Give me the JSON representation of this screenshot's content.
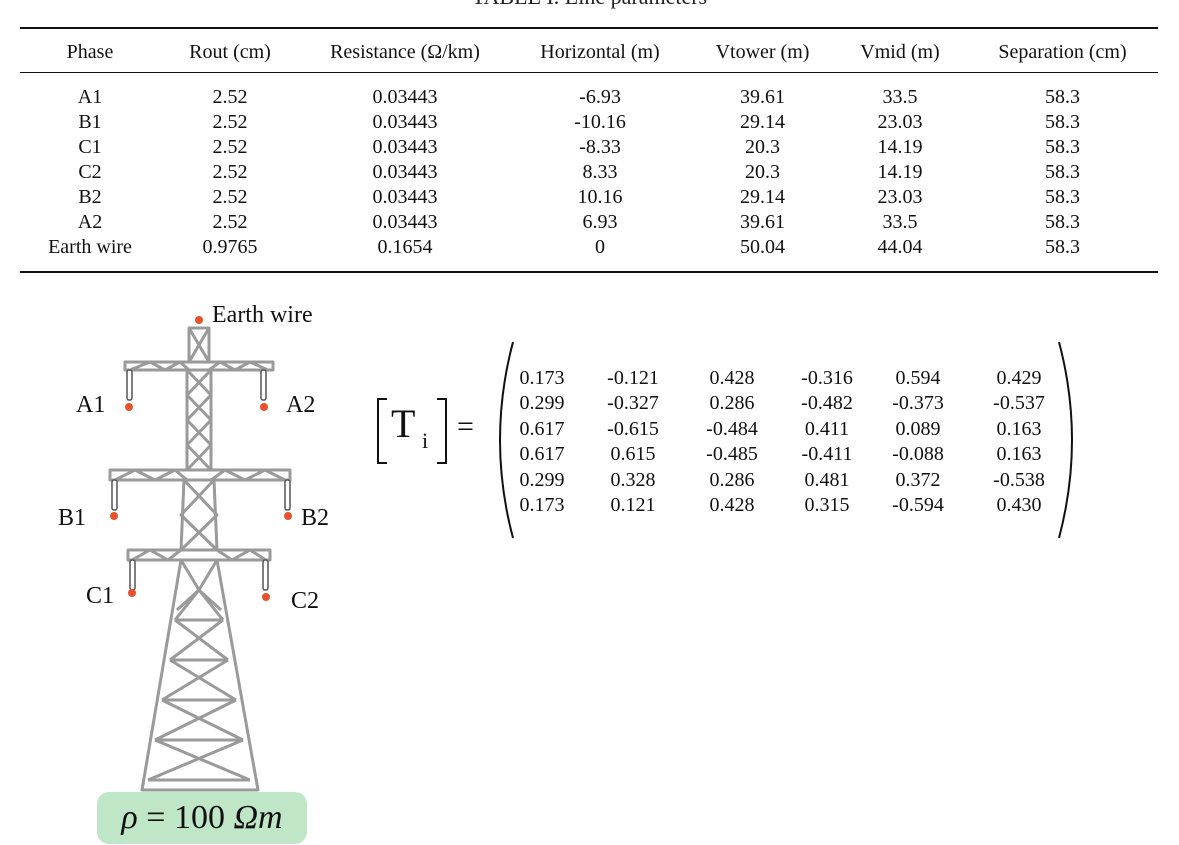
{
  "caption": "TABLE I. Line parameters",
  "table": {
    "headers": [
      "Phase",
      "Rout (cm)",
      "Resistance (Ω/km)",
      "Horizontal (m)",
      "Vtower (m)",
      "Vmid (m)",
      "Separation (cm)"
    ],
    "rows": [
      [
        "A1",
        "2.52",
        "0.03443",
        "-6.93",
        "39.61",
        "33.5",
        "58.3"
      ],
      [
        "B1",
        "2.52",
        "0.03443",
        "-10.16",
        "29.14",
        "23.03",
        "58.3"
      ],
      [
        "C1",
        "2.52",
        "0.03443",
        "-8.33",
        "20.3",
        "14.19",
        "58.3"
      ],
      [
        "C2",
        "2.52",
        "0.03443",
        "8.33",
        "20.3",
        "14.19",
        "58.3"
      ],
      [
        "B2",
        "2.52",
        "0.03443",
        "10.16",
        "29.14",
        "23.03",
        "58.3"
      ],
      [
        "A2",
        "2.52",
        "0.03443",
        "6.93",
        "39.61",
        "33.5",
        "58.3"
      ],
      [
        "Earth wire",
        "0.9765",
        "0.1654",
        "0",
        "50.04",
        "44.04",
        "58.3"
      ]
    ]
  },
  "figure": {
    "labels": {
      "earth": "Earth wire",
      "a1": "A1",
      "a2": "A2",
      "b1": "B1",
      "b2": "B2",
      "c1": "C1",
      "c2": "C2"
    },
    "conductor_color": "#e8512a",
    "tower_color": "#9a9a9a",
    "soil": {
      "symbol": "ρ",
      "equals": "=",
      "value": "100",
      "unit": "Ωm",
      "box_color": "#bfe6c7"
    }
  },
  "matrix": {
    "symbol": "T",
    "subscript": "i",
    "equals": "=",
    "rows": [
      [
        "0.173",
        "-0.121",
        "0.428",
        "-0.316",
        "0.594",
        "0.429"
      ],
      [
        "0.299",
        "-0.327",
        "0.286",
        "-0.482",
        "-0.373",
        "-0.537"
      ],
      [
        "0.617",
        "-0.615",
        "-0.484",
        "0.411",
        "0.089",
        "0.163"
      ],
      [
        "0.617",
        "0.615",
        "-0.485",
        "-0.411",
        "-0.088",
        "0.163"
      ],
      [
        "0.299",
        "0.328",
        "0.286",
        "0.481",
        "0.372",
        "-0.538"
      ],
      [
        "0.173",
        "0.121",
        "0.428",
        "0.315",
        "-0.594",
        "0.430"
      ]
    ]
  }
}
